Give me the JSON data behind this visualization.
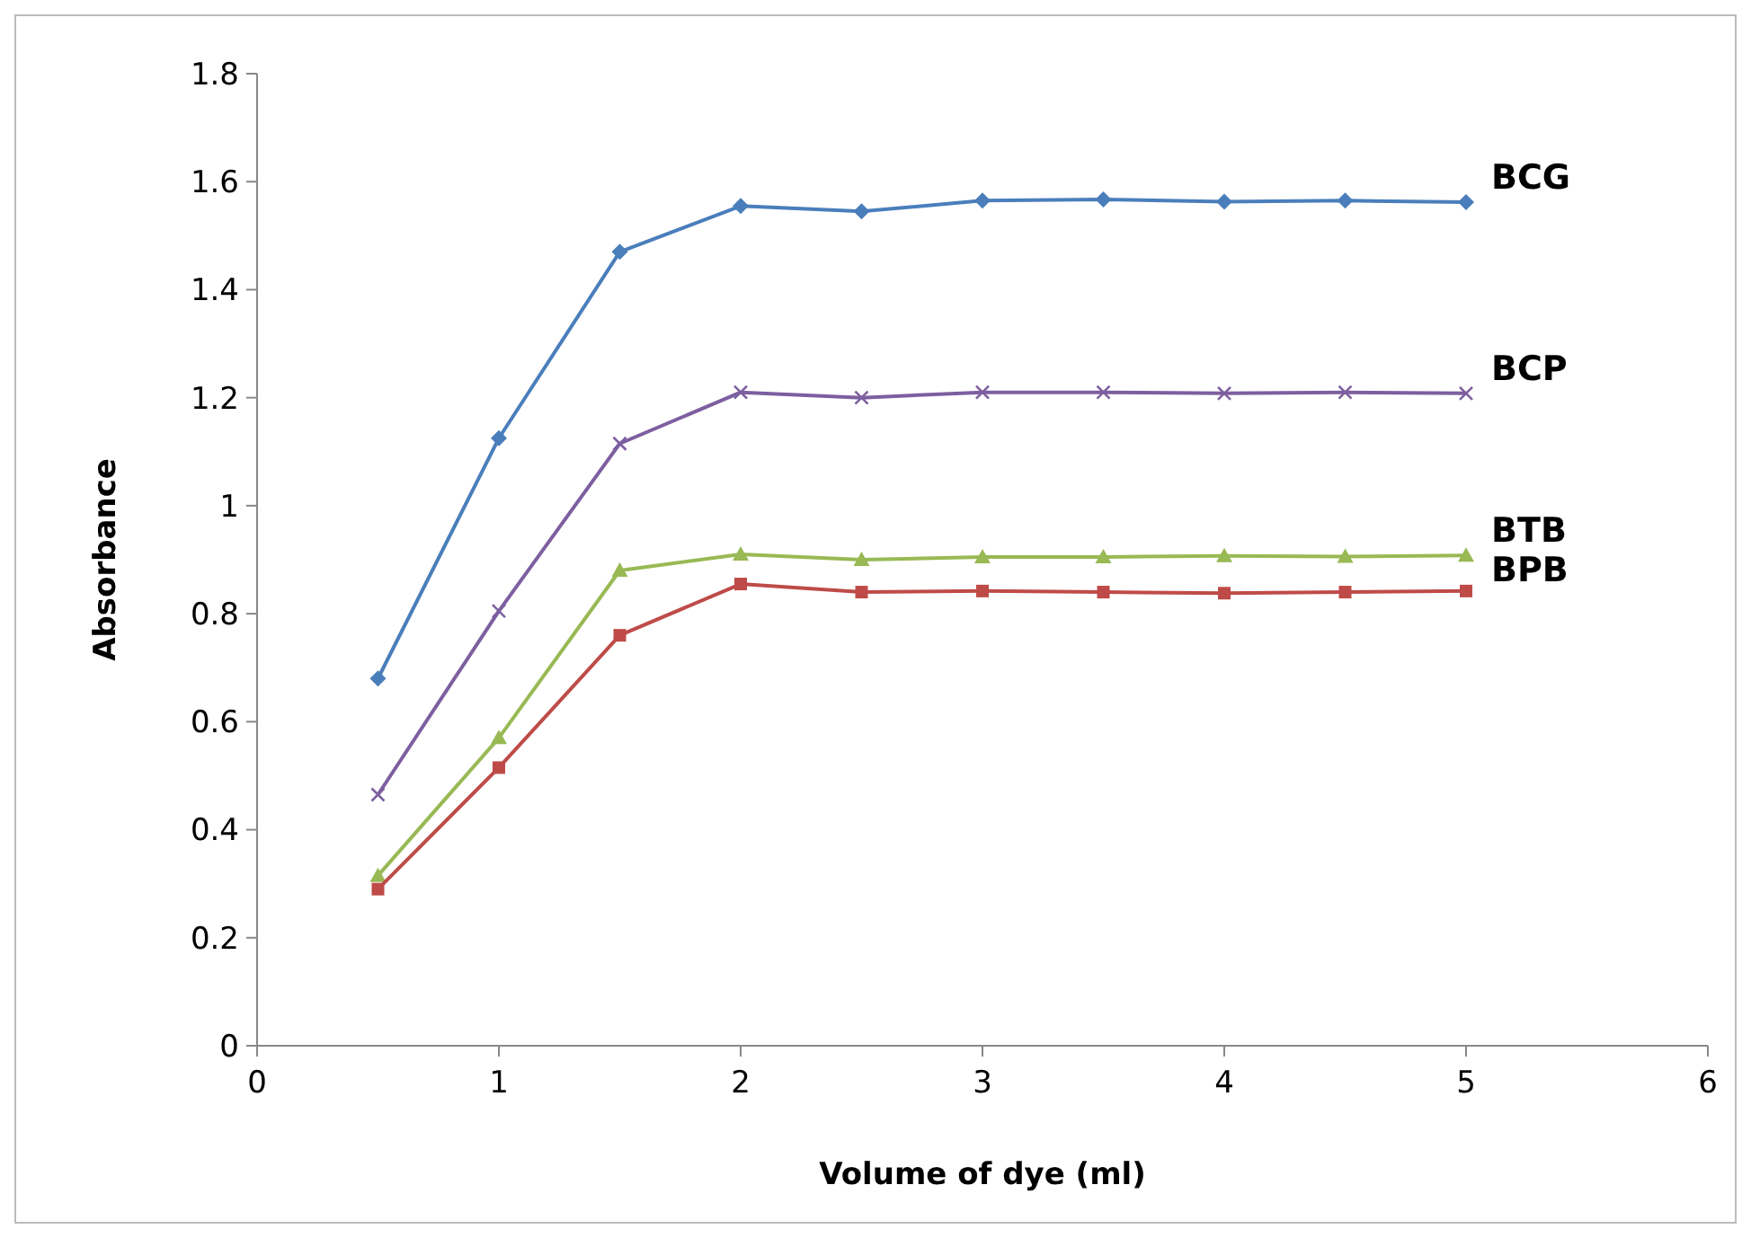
{
  "chart_data": {
    "type": "line",
    "xlabel": "Volume of dye (ml)",
    "ylabel": "Absorbance",
    "x": [
      0.5,
      1,
      1.5,
      2,
      2.5,
      3,
      3.5,
      4,
      4.5,
      5
    ],
    "xlim": [
      0,
      6
    ],
    "xticks": [
      0,
      1,
      2,
      3,
      4,
      5,
      6
    ],
    "ylim": [
      0,
      1.8
    ],
    "yticks": [
      0,
      {
        "value": 0.2,
        "label": "0.2"
      },
      {
        "value": 0.4,
        "label": "0.4"
      },
      {
        "value": 0.6,
        "label": "0.6"
      },
      {
        "value": 0.8,
        "label": "0.8"
      },
      1,
      {
        "value": 1.2,
        "label": "1.2"
      },
      {
        "value": 1.4,
        "label": "1.4"
      },
      {
        "value": 1.6,
        "label": "1.6"
      },
      {
        "value": 1.8,
        "label": "1.8"
      }
    ],
    "grid": false,
    "legend": false,
    "line_style": "solid",
    "series": [
      {
        "name": "BCG",
        "color": "#4a7ebb",
        "marker": "diamond",
        "values": [
          0.68,
          1.125,
          1.47,
          1.555,
          1.545,
          1.565,
          1.567,
          1.563,
          1.565,
          1.562
        ]
      },
      {
        "name": "BCP",
        "color": "#7d5fa0",
        "marker": "cross",
        "values": [
          0.465,
          0.805,
          1.115,
          1.21,
          1.2,
          1.21,
          1.21,
          1.208,
          1.21,
          1.208
        ]
      },
      {
        "name": "BTB",
        "color": "#98b954",
        "marker": "triangle",
        "values": [
          0.315,
          0.57,
          0.88,
          0.91,
          0.9,
          0.905,
          0.905,
          0.907,
          0.906,
          0.908
        ]
      },
      {
        "name": "BPB",
        "color": "#be4b48",
        "marker": "square",
        "values": [
          0.29,
          0.515,
          0.76,
          0.855,
          0.84,
          0.842,
          0.84,
          0.838,
          0.84,
          0.842
        ]
      }
    ]
  }
}
